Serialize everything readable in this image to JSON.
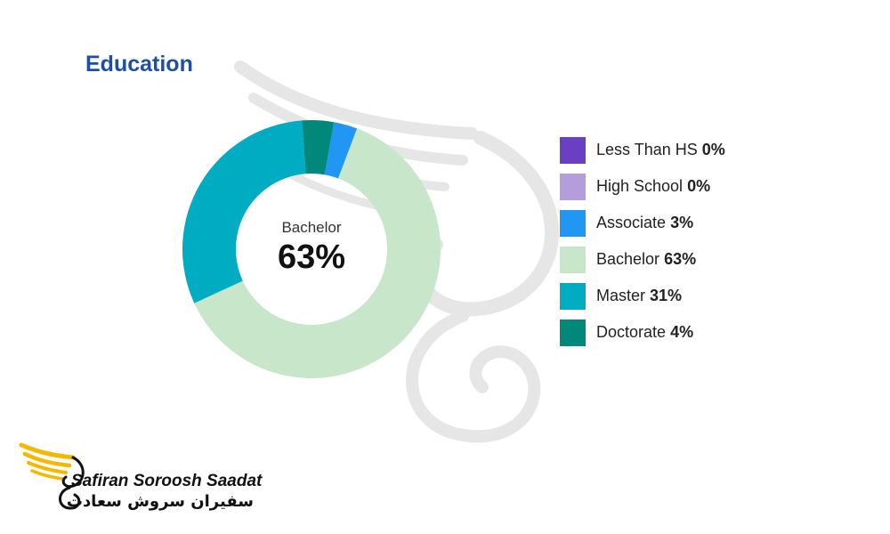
{
  "header": {
    "title": "Education"
  },
  "chart_data": {
    "type": "donut",
    "title": "Education",
    "categories": [
      "Less Than HS",
      "High School",
      "Associate",
      "Bachelor",
      "Master",
      "Doctorate"
    ],
    "values": [
      0,
      0,
      3,
      63,
      31,
      4
    ],
    "value_labels": [
      "0%",
      "0%",
      "3%",
      "63%",
      "31%",
      "4%"
    ],
    "colors": [
      "#6a3fc1",
      "#b39ddb",
      "#2196f3",
      "#c8e6c9",
      "#00acc1",
      "#00897b"
    ],
    "center_label": "Bachelor",
    "center_value": "63%",
    "legend_position": "right",
    "unit": "%"
  },
  "brand": {
    "name": "Safiran Soroosh Saadat",
    "name_fa": "سفیران سروش سعادت",
    "accent_color": "#f5b800"
  }
}
